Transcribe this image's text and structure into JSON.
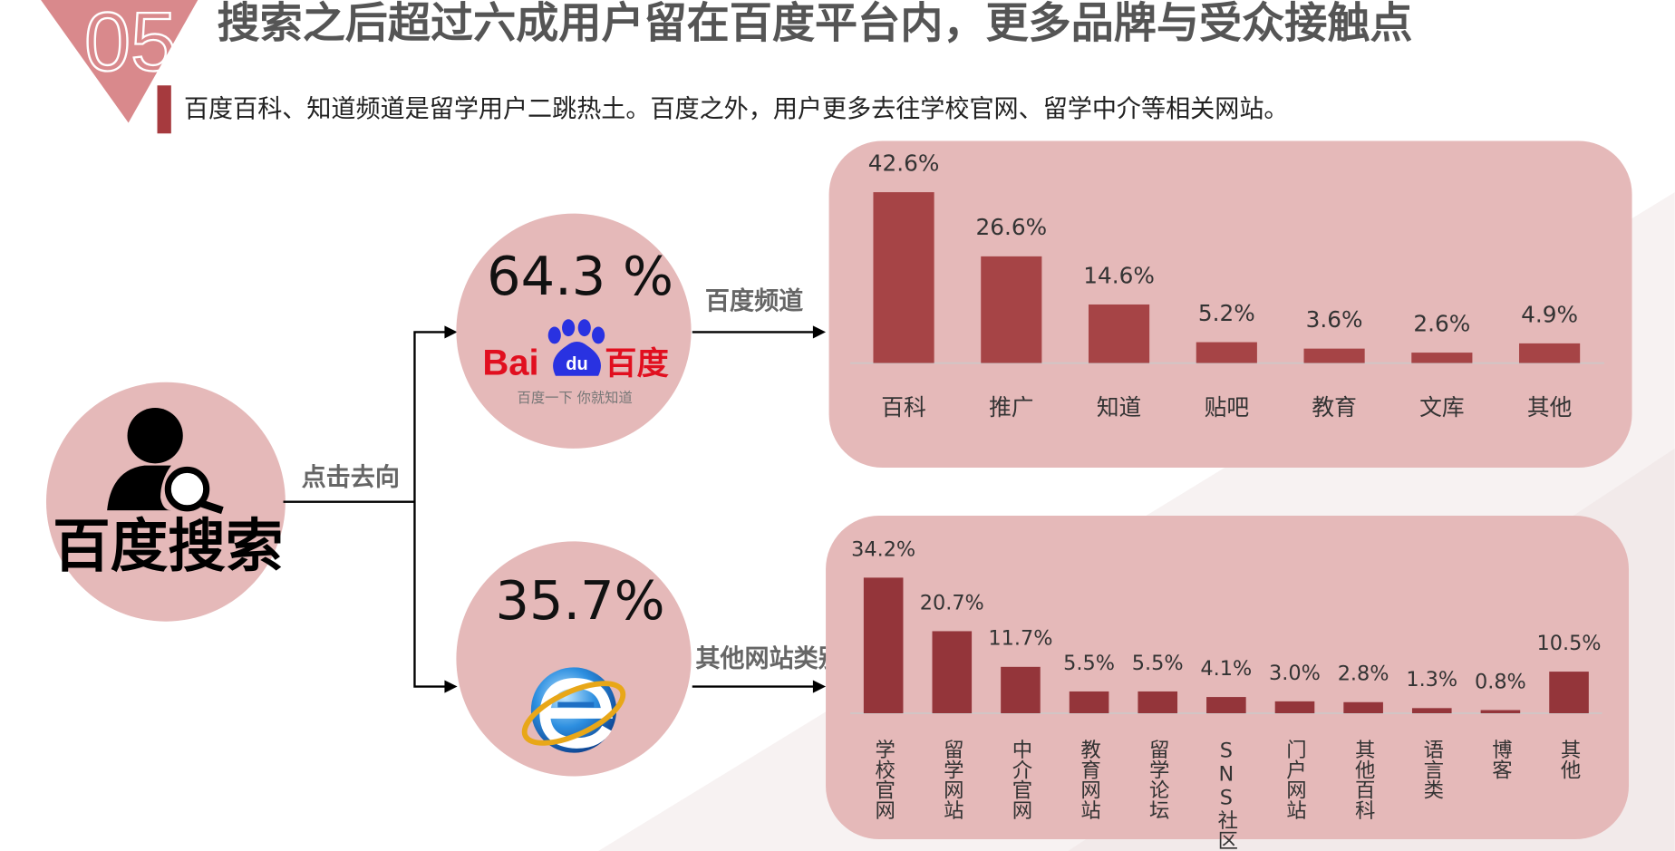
{
  "slide": {
    "number": "05",
    "title": "搜索之后超过六成用户留在百度平台内，更多品牌与受众接触点",
    "subtitle": "百度百科、知道频道是留学用户二跳热土。百度之外，用户更多去往学校官网、留学中介等相关网站。",
    "source_label": "百度搜索",
    "flow_label": "点击去向",
    "branches": [
      {
        "share": "64.3 %",
        "label": "百度频道"
      },
      {
        "share": "35.7%",
        "label": "其他网站类别"
      }
    ],
    "logo": {
      "latin": "Bai",
      "paw": "du",
      "chinese": "百度",
      "slogan": "百度一下  你就知道"
    }
  },
  "chart_data": [
    {
      "type": "bar",
      "color": "#a64446",
      "categories": [
        "百科",
        "推广",
        "知道",
        "贴吧",
        "教育",
        "文库",
        "其他"
      ],
      "values": [
        42.6,
        26.6,
        14.6,
        5.2,
        3.6,
        2.6,
        4.9
      ],
      "value_labels": [
        "42.6%",
        "26.6%",
        "14.6%",
        "5.2%",
        "3.6%",
        "2.6%",
        "4.9%"
      ]
    },
    {
      "type": "bar",
      "color": "#94353a",
      "categories": [
        "学校官网",
        "留学网站",
        "中介官网",
        "教育网站",
        "留学论坛",
        "SNS社区",
        "门户网站",
        "其他百科",
        "语言类",
        "博客",
        "其他"
      ],
      "values": [
        34.2,
        20.7,
        11.7,
        5.5,
        5.5,
        4.1,
        3.0,
        2.8,
        1.3,
        0.8,
        10.5
      ],
      "value_labels": [
        "34.2%",
        "20.7%",
        "11.7%",
        "5.5%",
        "5.5%",
        "4.1%",
        "3.0%",
        "2.8%",
        "1.3%",
        "0.8%",
        "10.5%"
      ]
    }
  ]
}
